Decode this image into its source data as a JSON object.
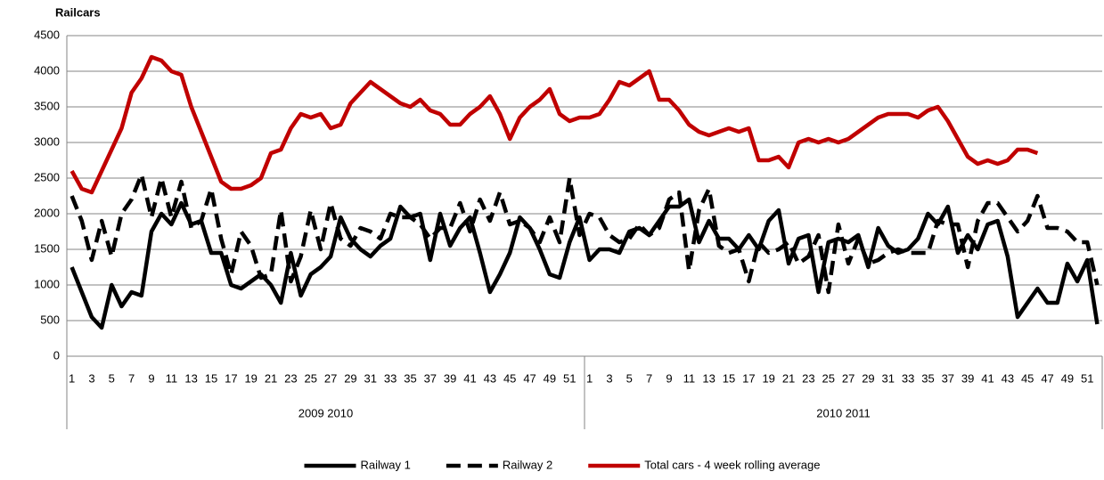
{
  "chart_data": {
    "type": "line",
    "y_label": "Railcars",
    "x_groups": [
      "2009 2010",
      "2010 2011"
    ],
    "categories": [
      "1",
      null,
      "3",
      null,
      "5",
      null,
      "7",
      null,
      "9",
      null,
      "11",
      null,
      "13",
      null,
      "15",
      null,
      "17",
      null,
      "19",
      null,
      "21",
      null,
      "23",
      null,
      "25",
      null,
      "27",
      null,
      "29",
      null,
      "31",
      null,
      "33",
      null,
      "35",
      null,
      "37",
      null,
      "39",
      null,
      "41",
      null,
      "43",
      null,
      "45",
      null,
      "47",
      null,
      "49",
      null,
      "51",
      null,
      "1",
      null,
      "3",
      null,
      "5",
      null,
      "7",
      null,
      "9",
      null,
      "11",
      null,
      "13",
      null,
      "15",
      null,
      "17",
      null,
      "19",
      null,
      "21",
      null,
      "23",
      null,
      "25",
      null,
      "27",
      null,
      "29",
      null,
      "31",
      null,
      "33",
      null,
      "35",
      null,
      "37",
      null,
      "39",
      null,
      "41",
      null,
      "43",
      null,
      "45",
      null,
      "47",
      null,
      "49",
      null,
      "51",
      null
    ],
    "series": [
      {
        "name": "Railway 1",
        "color": "#000000",
        "style": "solid",
        "values": [
          1250,
          900,
          550,
          400,
          1000,
          700,
          900,
          850,
          1750,
          2000,
          1850,
          2150,
          1850,
          1900,
          1450,
          1450,
          1000,
          950,
          1050,
          1150,
          1000,
          750,
          1450,
          850,
          1150,
          1250,
          1400,
          1950,
          1650,
          1500,
          1400,
          1550,
          1650,
          2100,
          1950,
          2000,
          1350,
          2000,
          1550,
          1800,
          1950,
          1450,
          900,
          1150,
          1450,
          1950,
          1800,
          1500,
          1150,
          1100,
          1600,
          1950,
          1350,
          1500,
          1500,
          1450,
          1750,
          1800,
          1700,
          1900,
          2100,
          2100,
          2200,
          1600,
          1900,
          1650,
          1650,
          1500,
          1700,
          1500,
          1900,
          2050,
          1300,
          1650,
          1700,
          900,
          1600,
          1650,
          1600,
          1700,
          1250,
          1800,
          1550,
          1450,
          1500,
          1650,
          2000,
          1850,
          2100,
          1450,
          1700,
          1500,
          1850,
          1900,
          1400,
          550,
          750,
          950,
          750,
          750,
          1300,
          1050,
          1350,
          450
        ]
      },
      {
        "name": "Railway 2",
        "color": "#000000",
        "style": "dashed",
        "values": [
          2250,
          1900,
          1350,
          1900,
          1400,
          2000,
          2200,
          2550,
          1950,
          2500,
          1950,
          2450,
          1800,
          1900,
          2350,
          1650,
          1150,
          1750,
          1550,
          1100,
          1150,
          2050,
          1050,
          1400,
          2050,
          1500,
          2150,
          1650,
          1550,
          1800,
          1750,
          1650,
          2000,
          1950,
          1950,
          1850,
          1650,
          1800,
          1800,
          2150,
          1750,
          2200,
          1900,
          2300,
          1850,
          1900,
          1800,
          1600,
          1950,
          1600,
          2500,
          1700,
          2000,
          1950,
          1700,
          1600,
          1650,
          1850,
          1700,
          1800,
          2200,
          2300,
          1200,
          2050,
          2350,
          1550,
          1450,
          1500,
          1050,
          1600,
          1450,
          1500,
          1600,
          1300,
          1400,
          1700,
          900,
          1850,
          1300,
          1650,
          1300,
          1350,
          1450,
          1500,
          1450,
          1450,
          1450,
          1900,
          1850,
          1850,
          1250,
          1900,
          2150,
          2150,
          1950,
          1750,
          1900,
          2250,
          1800,
          1800,
          1750,
          1600,
          1600,
          1000
        ]
      },
      {
        "name": "Total cars - 4 week rolling average",
        "color": "#c00000",
        "style": "solid",
        "values": [
          2600,
          2350,
          2300,
          2600,
          2900,
          3200,
          3700,
          3900,
          4200,
          4150,
          4000,
          3950,
          3500,
          3150,
          2800,
          2450,
          2350,
          2350,
          2400,
          2500,
          2850,
          2900,
          3200,
          3400,
          3350,
          3400,
          3200,
          3250,
          3550,
          3700,
          3850,
          3750,
          3650,
          3550,
          3500,
          3600,
          3450,
          3400,
          3250,
          3250,
          3400,
          3500,
          3650,
          3400,
          3050,
          3350,
          3500,
          3600,
          3750,
          3400,
          3300,
          3350,
          3350,
          3400,
          3600,
          3850,
          3800,
          3900,
          4000,
          3600,
          3600,
          3450,
          3250,
          3150,
          3100,
          3150,
          3200,
          3150,
          3200,
          2750,
          2750,
          2800,
          2650,
          3000,
          3050,
          3000,
          3050,
          3000,
          3050,
          3150,
          3250,
          3350,
          3400,
          3400,
          3400,
          3350,
          3450,
          3500,
          3300,
          3050,
          2800,
          2700,
          2750,
          2700,
          2750,
          2900,
          2900,
          2850,
          null,
          null,
          null,
          null,
          null,
          null
        ]
      }
    ],
    "ylim": [
      0,
      4500
    ],
    "yticks": [
      0,
      500,
      1000,
      1500,
      2000,
      2500,
      3000,
      3500,
      4000,
      4500
    ],
    "grid": true,
    "legend": "bottom"
  }
}
